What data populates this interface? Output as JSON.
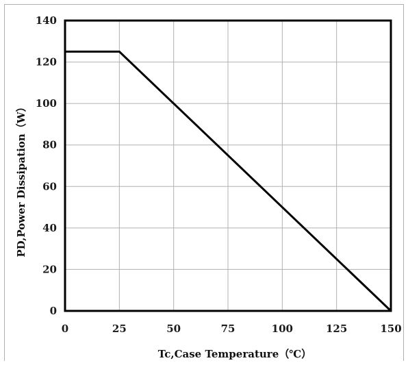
{
  "chart_data": {
    "type": "line",
    "xlabel": "Tc,Case Temperature（℃）",
    "ylabel": "PD,Power Dissipation（W）",
    "xlim": [
      0,
      150
    ],
    "ylim": [
      0,
      140
    ],
    "x_ticks": [
      0,
      25,
      50,
      75,
      100,
      125,
      150
    ],
    "y_ticks": [
      0,
      20,
      40,
      60,
      80,
      100,
      120,
      140
    ],
    "grid": true,
    "series": [
      {
        "x": [
          0,
          25,
          150
        ],
        "y": [
          125,
          125,
          0
        ]
      }
    ],
    "colors": {
      "line": "#000000",
      "grid": "#b0b0b0",
      "frame": "#000000"
    }
  }
}
